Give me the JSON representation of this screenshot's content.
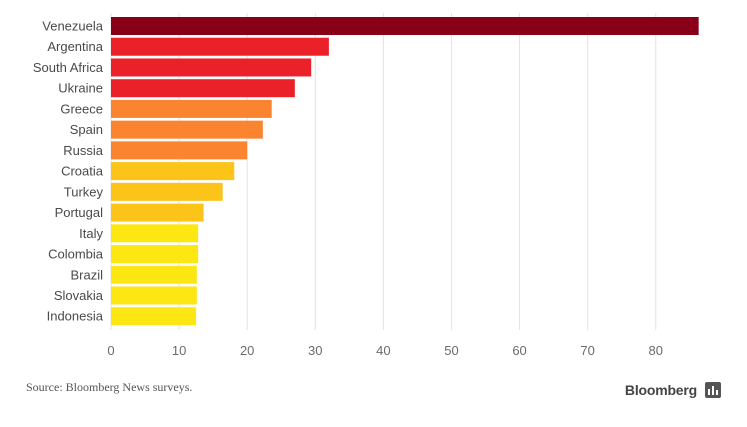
{
  "chart_data": {
    "type": "bar",
    "orientation": "horizontal",
    "categories": [
      "Venezuela",
      "Argentina",
      "South Africa",
      "Ukraine",
      "Greece",
      "Spain",
      "Russia",
      "Croatia",
      "Turkey",
      "Portugal",
      "Italy",
      "Colombia",
      "Brazil",
      "Slovakia",
      "Indonesia"
    ],
    "values": [
      86.3,
      32.0,
      29.4,
      27.0,
      23.6,
      22.3,
      20.0,
      18.1,
      16.4,
      13.6,
      12.8,
      12.8,
      12.6,
      12.6,
      12.5
    ],
    "colors": [
      "#870017",
      "#ea2128",
      "#ea2128",
      "#ea2128",
      "#fb8430",
      "#fb8430",
      "#fb8430",
      "#fcc419",
      "#fcc419",
      "#fcc419",
      "#fde713",
      "#fde713",
      "#fde713",
      "#fde713",
      "#fde713"
    ],
    "xlim": [
      0,
      86.5
    ],
    "xticks": [
      0,
      10,
      20,
      30,
      40,
      50,
      60,
      70,
      80
    ],
    "grid": "vertical",
    "title": "",
    "xlabel": "",
    "ylabel": ""
  },
  "footer": {
    "source": "Source: Bloomberg News surveys.",
    "brand": "Bloomberg"
  },
  "colors": {
    "grid": "#e3e3e3",
    "tick_text": "#6b6b6b",
    "label_text": "#4a4a4a"
  }
}
